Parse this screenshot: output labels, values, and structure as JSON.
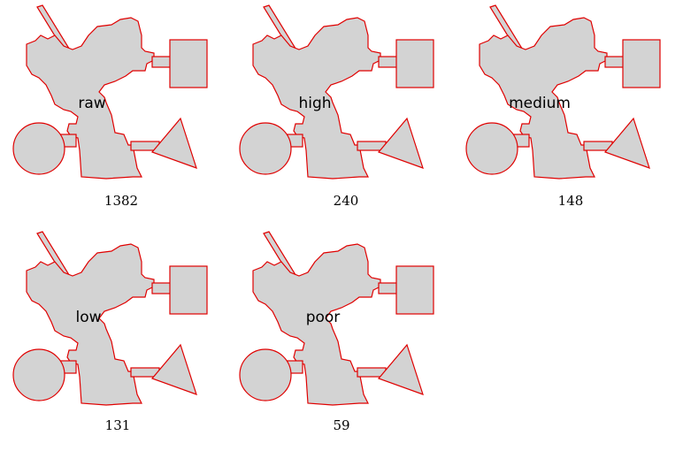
{
  "colors": {
    "shape_fill": "#d3d3d3",
    "outline": "#e00000",
    "background": "#ffffff"
  },
  "panels": [
    {
      "label": "raw",
      "count": "1382"
    },
    {
      "label": "high",
      "count": "240"
    },
    {
      "label": "medium",
      "count": "148"
    },
    {
      "label": "low",
      "count": "131"
    },
    {
      "label": "poor",
      "count": "59"
    }
  ]
}
